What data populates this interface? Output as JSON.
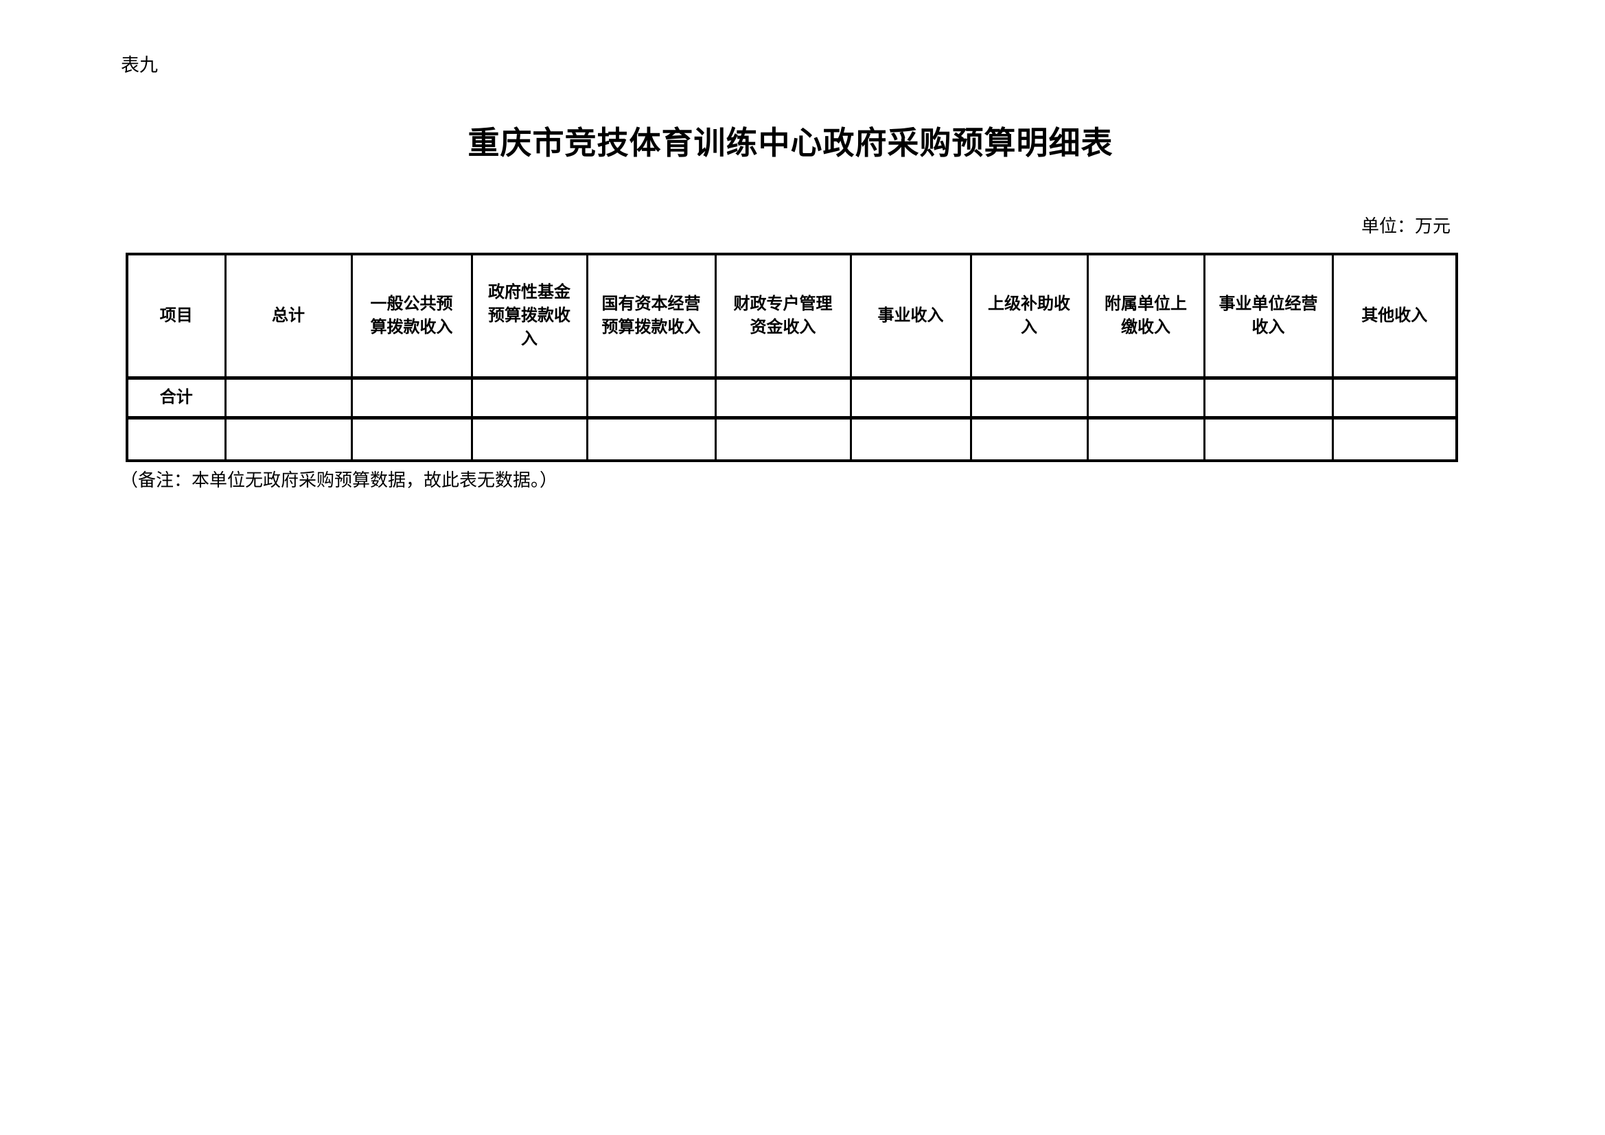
{
  "page": {
    "table_label": "表九",
    "title": "重庆市竞技体育训练中心政府采购预算明细表",
    "unit_note": "单位：万元",
    "footnote": "（备注：本单位无政府采购预算数据，故此表无数据。）"
  },
  "table": {
    "columns": [
      {
        "label": "项目"
      },
      {
        "label": "总计"
      },
      {
        "label": "一般公共预\n算拨款收入"
      },
      {
        "label": "政府性基金\n预算拨款收\n入"
      },
      {
        "label": "国有资本经营\n预算拨款收入"
      },
      {
        "label": "财政专户管理\n资金收入"
      },
      {
        "label": "事业收入"
      },
      {
        "label": "上级补助收\n入"
      },
      {
        "label": "附属单位上\n缴收入"
      },
      {
        "label": "事业单位经营\n收入"
      },
      {
        "label": "其他收入"
      }
    ],
    "rows": [
      {
        "cells": [
          "合计",
          "",
          "",
          "",
          "",
          "",
          "",
          "",
          "",
          "",
          ""
        ]
      },
      {
        "cells": [
          "",
          "",
          "",
          "",
          "",
          "",
          "",
          "",
          "",
          "",
          ""
        ]
      }
    ]
  }
}
